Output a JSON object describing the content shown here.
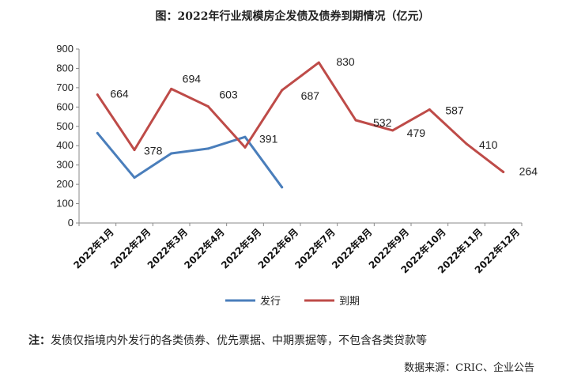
{
  "chart_data": {
    "type": "line",
    "title": "图：2022年行业规模房企发债及债券到期情况（亿元）",
    "categories": [
      "2022年1月",
      "2022年2月",
      "2022年3月",
      "2022年4月",
      "2022年5月",
      "2022年6月",
      "2022年7月",
      "2022年8月",
      "2022年9月",
      "2022年10月",
      "2022年11月",
      "2022年12月"
    ],
    "ylim": [
      0,
      900
    ],
    "yticks": [
      0,
      100,
      200,
      300,
      400,
      500,
      600,
      700,
      800,
      900
    ],
    "grid": false,
    "legend_position": "bottom",
    "series": [
      {
        "name": "发行",
        "color": "#4a7ebb",
        "values": [
          465,
          235,
          360,
          385,
          445,
          185,
          null,
          null,
          null,
          null,
          null,
          null
        ],
        "labels": []
      },
      {
        "name": "到期",
        "color": "#be4b48",
        "values": [
          664,
          378,
          694,
          603,
          391,
          687,
          830,
          532,
          479,
          587,
          410,
          264
        ],
        "labels": [
          "664",
          "378",
          "694",
          "603",
          "391",
          "687",
          "830",
          "532",
          "479",
          "587",
          "410",
          "264"
        ]
      }
    ]
  },
  "note": {
    "prefix": "注：",
    "text": "发债仅指境内外发行的各类债券、优先票据、中期票据等，不包含各类贷款等"
  },
  "source": "数据来源：CRIC、企业公告"
}
